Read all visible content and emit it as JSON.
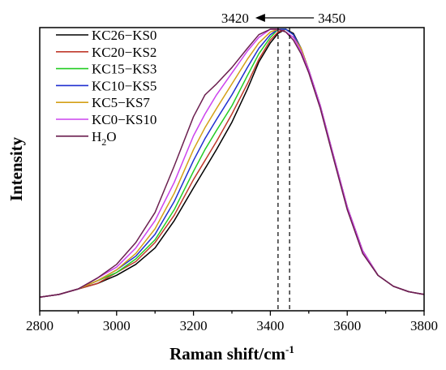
{
  "chart_data": {
    "type": "line",
    "xlabel": "Raman shift/cm",
    "xlabel_superscript": "-1",
    "ylabel": "Intensity",
    "xlim": [
      2800,
      3800
    ],
    "ylim": [
      0,
      1.0
    ],
    "x_ticks": [
      2800,
      3000,
      3200,
      3400,
      3600,
      3800
    ],
    "y_ticks_shown": false,
    "grid": false,
    "legend_position": "top-left",
    "annotations": [
      {
        "text": "3420",
        "x": 3420
      },
      {
        "text": "3450",
        "x": 3450
      }
    ],
    "x": [
      2800,
      2850,
      2900,
      2950,
      3000,
      3050,
      3100,
      3150,
      3200,
      3230,
      3260,
      3300,
      3340,
      3370,
      3400,
      3420,
      3440,
      3460,
      3480,
      3500,
      3530,
      3560,
      3600,
      3640,
      3680,
      3720,
      3760,
      3800
    ],
    "series": [
      {
        "name": "KC26−KS0",
        "color": "#000000",
        "values": [
          0.02,
          0.03,
          0.05,
          0.07,
          0.1,
          0.14,
          0.2,
          0.3,
          0.42,
          0.49,
          0.56,
          0.66,
          0.78,
          0.88,
          0.95,
          0.985,
          1.0,
          0.985,
          0.93,
          0.85,
          0.72,
          0.56,
          0.35,
          0.19,
          0.1,
          0.06,
          0.04,
          0.03
        ]
      },
      {
        "name": "KC20−KS2",
        "color": "#c0392b",
        "values": [
          0.02,
          0.03,
          0.05,
          0.07,
          0.11,
          0.15,
          0.22,
          0.32,
          0.45,
          0.52,
          0.59,
          0.69,
          0.8,
          0.89,
          0.96,
          0.99,
          1.0,
          0.98,
          0.93,
          0.85,
          0.72,
          0.56,
          0.35,
          0.19,
          0.1,
          0.06,
          0.04,
          0.03
        ]
      },
      {
        "name": "KC15−KS3",
        "color": "#22cc22",
        "values": [
          0.02,
          0.03,
          0.05,
          0.08,
          0.11,
          0.16,
          0.23,
          0.34,
          0.48,
          0.56,
          0.63,
          0.72,
          0.83,
          0.91,
          0.97,
          1.0,
          1.0,
          0.98,
          0.93,
          0.85,
          0.72,
          0.56,
          0.35,
          0.19,
          0.1,
          0.06,
          0.04,
          0.03
        ]
      },
      {
        "name": "KC10−KS5",
        "color": "#1f2fd0",
        "values": [
          0.02,
          0.03,
          0.05,
          0.08,
          0.12,
          0.17,
          0.25,
          0.37,
          0.52,
          0.6,
          0.67,
          0.76,
          0.86,
          0.93,
          0.98,
          1.0,
          1.0,
          0.98,
          0.93,
          0.85,
          0.72,
          0.56,
          0.35,
          0.19,
          0.1,
          0.06,
          0.04,
          0.03
        ]
      },
      {
        "name": "KC5−KS7",
        "color": "#d4a017",
        "values": [
          0.02,
          0.03,
          0.05,
          0.08,
          0.12,
          0.18,
          0.27,
          0.4,
          0.56,
          0.64,
          0.71,
          0.8,
          0.89,
          0.95,
          0.99,
          1.0,
          0.99,
          0.97,
          0.93,
          0.85,
          0.72,
          0.56,
          0.35,
          0.19,
          0.1,
          0.06,
          0.04,
          0.03
        ]
      },
      {
        "name": "KC0−KS10",
        "color": "#cc44ee",
        "values": [
          0.02,
          0.03,
          0.05,
          0.09,
          0.13,
          0.2,
          0.3,
          0.44,
          0.61,
          0.69,
          0.76,
          0.84,
          0.92,
          0.97,
          1.0,
          1.0,
          0.99,
          0.97,
          0.92,
          0.85,
          0.72,
          0.56,
          0.35,
          0.19,
          0.1,
          0.06,
          0.04,
          0.03
        ]
      },
      {
        "name": "H",
        "name_subscript": "2",
        "name_suffix": "O",
        "color": "#6b1f4f",
        "values": [
          0.02,
          0.03,
          0.05,
          0.09,
          0.14,
          0.22,
          0.33,
          0.5,
          0.68,
          0.76,
          0.8,
          0.86,
          0.93,
          0.98,
          1.0,
          1.0,
          0.99,
          0.96,
          0.91,
          0.84,
          0.71,
          0.55,
          0.34,
          0.18,
          0.1,
          0.06,
          0.04,
          0.03
        ]
      }
    ]
  }
}
